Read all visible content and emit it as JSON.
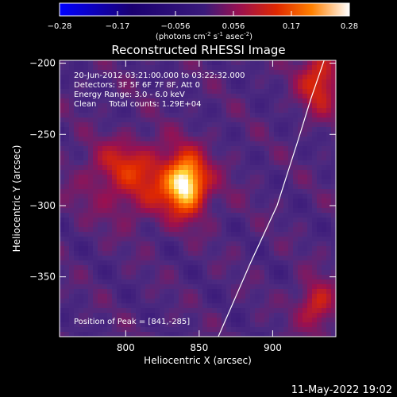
{
  "chart_data": {
    "type": "heatmap",
    "title": "Reconstructed RHESSI Image",
    "xlabel": "Heliocentric X (arcsec)",
    "ylabel": "Heliocentric Y (arcsec)",
    "xlim": [
      755,
      943
    ],
    "ylim": [
      -392,
      -198
    ],
    "x_ticks": [
      800,
      850,
      900
    ],
    "y_ticks": [
      -200,
      -250,
      -300,
      -350
    ],
    "colorbar": {
      "label": "(photons cm",
      "label_sup1": "-2",
      "label_mid1": " s",
      "label_sup2": "-1",
      "label_mid2": " asec",
      "label_sup3": "-2",
      "label_end": ")",
      "range": [
        -0.28,
        0.28
      ],
      "ticks": [
        "−0.28",
        "−0.17",
        "−0.056",
        "0.056",
        "0.17",
        "0.28"
      ]
    },
    "annotations": {
      "time": "20-Jun-2012 03:21:00.000 to 03:22:32.000",
      "detectors": "Detectors: 3F 5F 6F 7F 8F, Att 0",
      "energy": "Energy Range: 3.0 - 6.0 keV",
      "clean": "Clean     Total counts: 1.29E+04",
      "peak": "Position of Peak = [841,-285]"
    },
    "peak": [
      841,
      -285
    ],
    "sources": [
      {
        "x": 841,
        "y": -285,
        "sx": 9,
        "sy": 14,
        "amp": 0.24
      },
      {
        "x": 815,
        "y": -283,
        "sx": 28,
        "sy": 18,
        "amp": 0.11
      },
      {
        "x": 797,
        "y": -268,
        "sx": 13,
        "sy": 10,
        "amp": 0.05
      },
      {
        "x": 932,
        "y": -212,
        "sx": 10,
        "sy": 16,
        "amp": 0.14
      },
      {
        "x": 930,
        "y": -370,
        "sx": 9,
        "sy": 12,
        "amp": 0.12
      }
    ],
    "limb": [
      [
        863,
        -392
      ],
      [
        885,
        -340
      ],
      [
        903,
        -300
      ],
      [
        917,
        -255
      ],
      [
        926,
        -225
      ],
      [
        935,
        -198
      ]
    ],
    "colormap": [
      "#0000ff",
      "#1a0070",
      "#3a1a7a",
      "#4c2a80",
      "#9a1050",
      "#e02800",
      "#ff7000",
      "#ffd030",
      "#ffffff"
    ]
  },
  "footer": {
    "timestamp": "11-May-2022 19:02"
  }
}
